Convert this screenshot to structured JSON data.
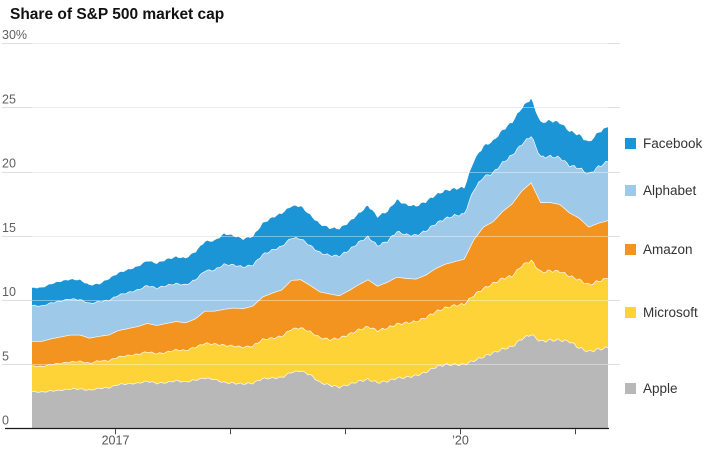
{
  "title": "Share of S&P 500 market cap",
  "y_axis": {
    "unit": "%",
    "tick_values": [
      30,
      25,
      20,
      15,
      10,
      5,
      0
    ],
    "tick_labels": [
      "30%",
      "25",
      "20",
      "15",
      "10",
      "5",
      "0"
    ]
  },
  "x_axis": {
    "ticks": [
      {
        "label": "2017",
        "month_index": 8.6
      },
      {
        "label": "",
        "month_index": 20.6
      },
      {
        "label": "",
        "month_index": 32.6
      },
      {
        "label": "’20",
        "month_index": 44.6
      },
      {
        "label": "",
        "month_index": 56.6
      }
    ]
  },
  "legend": [
    {
      "label": "Facebook",
      "color": "#1b95d5"
    },
    {
      "label": "Alphabet",
      "color": "#9fc9e8"
    },
    {
      "label": "Amazon",
      "color": "#f39421"
    },
    {
      "label": "Microsoft",
      "color": "#fdd338"
    },
    {
      "label": "Apple",
      "color": "#b8b8b8"
    }
  ],
  "chart_data": {
    "type": "area",
    "stacked": true,
    "title": "Share of S&P 500 market cap",
    "x_start": "2016-04",
    "x_end": "2021-04",
    "x_step_months": 1,
    "ylim": [
      0,
      30
    ],
    "gridlines": [
      0,
      5,
      10,
      15,
      20,
      25,
      30
    ],
    "grid_on": true,
    "legend_position": "right",
    "series": [
      {
        "name": "Apple",
        "color": "#b8b8b8",
        "values": [
          2.9,
          2.85,
          2.95,
          3.0,
          3.1,
          3.1,
          3.0,
          3.15,
          3.2,
          3.45,
          3.5,
          3.55,
          3.7,
          3.55,
          3.6,
          3.75,
          3.65,
          3.8,
          3.95,
          3.85,
          3.6,
          3.55,
          3.5,
          3.55,
          3.9,
          3.95,
          4.0,
          4.4,
          4.5,
          4.2,
          3.6,
          3.4,
          3.25,
          3.45,
          3.7,
          3.85,
          3.6,
          3.7,
          3.95,
          4.0,
          4.15,
          4.4,
          4.8,
          5.0,
          5.0,
          5.0,
          5.3,
          5.6,
          5.9,
          6.2,
          6.4,
          7.0,
          7.35,
          6.8,
          6.9,
          6.9,
          6.8,
          6.3,
          6.0,
          6.2,
          6.3
        ]
      },
      {
        "name": "Microsoft",
        "color": "#fdd338",
        "values": [
          2.0,
          2.0,
          2.05,
          2.1,
          2.1,
          2.15,
          2.1,
          2.15,
          2.1,
          2.15,
          2.2,
          2.25,
          2.3,
          2.3,
          2.35,
          2.4,
          2.45,
          2.55,
          2.7,
          2.75,
          2.9,
          2.9,
          2.85,
          2.9,
          3.05,
          3.1,
          3.2,
          3.35,
          3.35,
          3.35,
          3.5,
          3.55,
          3.8,
          3.9,
          4.0,
          4.1,
          4.05,
          4.15,
          4.2,
          4.25,
          4.2,
          4.25,
          4.3,
          4.4,
          4.6,
          4.7,
          5.1,
          5.3,
          5.4,
          5.5,
          5.5,
          5.7,
          5.75,
          5.4,
          5.4,
          5.35,
          5.1,
          5.3,
          5.2,
          5.3,
          5.4
        ]
      },
      {
        "name": "Amazon",
        "color": "#f39421",
        "values": [
          1.9,
          1.95,
          2.0,
          2.05,
          2.1,
          2.05,
          1.95,
          1.9,
          2.0,
          2.05,
          2.1,
          2.15,
          2.2,
          2.2,
          2.25,
          2.2,
          2.15,
          2.2,
          2.5,
          2.55,
          2.8,
          2.95,
          3.0,
          3.1,
          3.3,
          3.5,
          3.6,
          3.8,
          3.75,
          3.6,
          3.55,
          3.55,
          3.3,
          3.4,
          3.5,
          3.65,
          3.45,
          3.55,
          3.65,
          3.45,
          3.3,
          3.3,
          3.35,
          3.4,
          3.4,
          3.5,
          4.3,
          4.8,
          4.8,
          5.2,
          5.6,
          5.8,
          6.05,
          5.4,
          5.3,
          5.2,
          4.9,
          4.8,
          4.5,
          4.5,
          4.5
        ]
      },
      {
        "name": "Alphabet",
        "color": "#9fc9e8",
        "values": [
          2.8,
          2.75,
          2.8,
          2.8,
          2.8,
          2.75,
          2.7,
          2.7,
          2.7,
          2.75,
          2.8,
          2.85,
          2.95,
          2.9,
          2.95,
          2.95,
          2.95,
          3.05,
          3.15,
          3.2,
          3.5,
          3.35,
          3.25,
          3.2,
          3.3,
          3.35,
          3.4,
          3.3,
          3.2,
          3.1,
          3.05,
          3.0,
          3.1,
          3.15,
          3.3,
          3.35,
          3.15,
          3.2,
          3.55,
          3.4,
          3.4,
          3.45,
          3.5,
          3.55,
          3.6,
          3.5,
          3.9,
          3.9,
          3.8,
          3.8,
          3.8,
          3.65,
          3.65,
          3.55,
          3.6,
          3.65,
          3.7,
          3.9,
          4.1,
          4.4,
          4.6
        ]
      },
      {
        "name": "Facebook",
        "color": "#1b95d5",
        "values": [
          1.4,
          1.45,
          1.5,
          1.55,
          1.55,
          1.55,
          1.45,
          1.4,
          1.7,
          1.75,
          1.8,
          1.85,
          1.95,
          1.95,
          2.05,
          2.1,
          2.1,
          2.2,
          2.3,
          2.3,
          2.4,
          2.3,
          2.2,
          2.25,
          2.45,
          2.55,
          2.6,
          2.5,
          2.55,
          2.4,
          2.25,
          2.15,
          2.15,
          2.2,
          2.25,
          2.45,
          2.3,
          2.35,
          2.5,
          2.35,
          2.3,
          2.3,
          2.25,
          2.2,
          2.1,
          2.1,
          2.3,
          2.4,
          2.5,
          2.55,
          2.6,
          2.85,
          2.95,
          2.7,
          2.8,
          2.75,
          2.7,
          2.6,
          2.5,
          2.7,
          2.7
        ]
      }
    ]
  }
}
